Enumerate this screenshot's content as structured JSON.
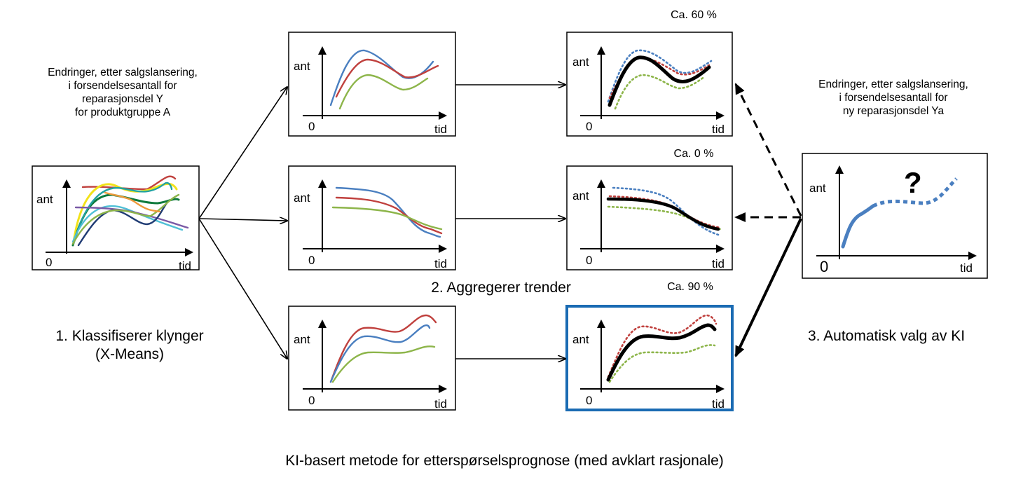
{
  "left_caption": "Endringer, etter salgslansering,\ni forsendelsesantall for\nreparasjonsdel Y\nfor produktgruppe A",
  "right_caption": "Endringer, etter salgslansering,\ni forsendelsesantall for\nny reparasjonsdel Ya",
  "step1_label": "1. Klassifiserer klynger\n(X-Means)",
  "step2_label": "2. Aggregerer trender",
  "step3_label": "3. Automatisk valg av KI",
  "percent_top": "Ca. 60 %",
  "percent_mid": "Ca. 0 %",
  "percent_bottom": "Ca. 90 %",
  "bottom_title": "KI-basert metode for etterspørselsprognose (med avklart rasjonale)",
  "axis": {
    "y_label": "ant",
    "x_label": "tid",
    "origin": "0"
  },
  "question_mark": "?",
  "colors": {
    "blue": "#4a7fc0",
    "red": "#c0413e",
    "green": "#8db54a",
    "black": "#000000",
    "highlight_frame": "#1a6bb3",
    "yellow": "#f2e21a",
    "teal": "#23a3a0",
    "orange": "#ef9a3b",
    "purple": "#7a5aa6",
    "navy": "#1f3b73",
    "cyan": "#4fc0d6",
    "darkgreen": "#0f7a3c"
  },
  "icons": [
    "arrow-right-icon",
    "dashed-arrow-icon",
    "question-mark-icon"
  ]
}
